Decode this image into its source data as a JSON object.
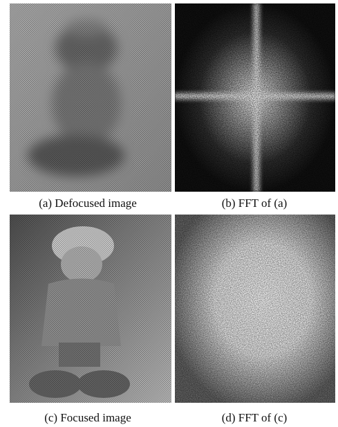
{
  "panels": [
    {
      "caption": "(a) Defocused image"
    },
    {
      "caption": "(b) FFT of (a)"
    },
    {
      "caption": "(c) Focused image"
    },
    {
      "caption": "(d) FFT of (c)"
    }
  ]
}
